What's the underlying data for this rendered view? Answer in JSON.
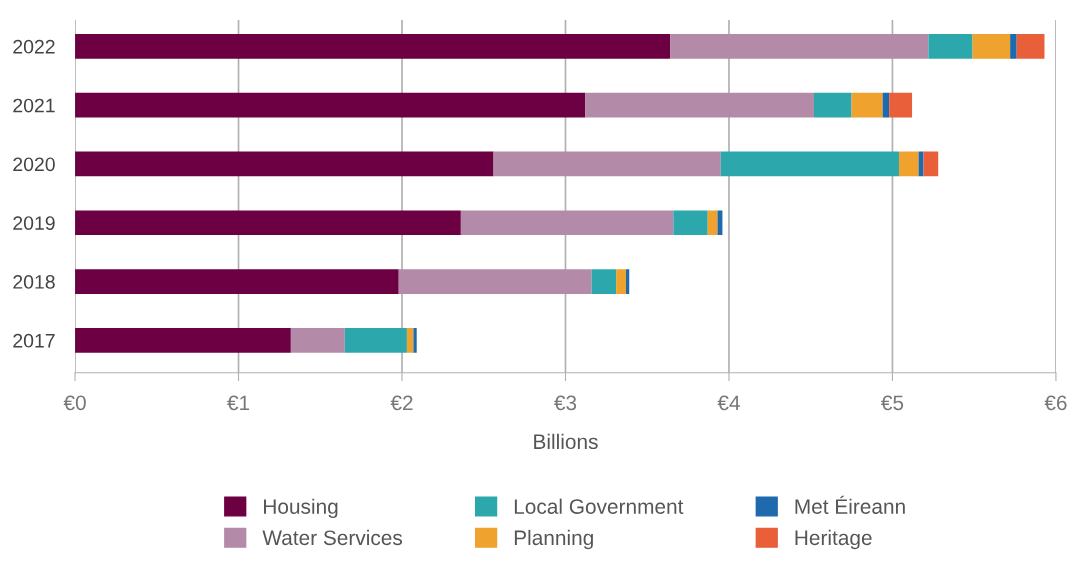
{
  "chart_data": {
    "type": "bar",
    "orientation": "horizontal",
    "stacked": true,
    "xlabel": "Billions",
    "categories": [
      "2022",
      "2021",
      "2020",
      "2019",
      "2018",
      "2017"
    ],
    "series": [
      {
        "name": "Housing",
        "color": "#6d0043",
        "values": [
          3.64,
          3.12,
          2.56,
          2.36,
          1.98,
          1.32
        ]
      },
      {
        "name": "Water Services",
        "color": "#b38ba8",
        "values": [
          1.58,
          1.4,
          1.39,
          1.3,
          1.18,
          0.33
        ]
      },
      {
        "name": "Local Government",
        "color": "#2ca8ad",
        "values": [
          0.27,
          0.23,
          1.09,
          0.21,
          0.15,
          0.38
        ]
      },
      {
        "name": "Planning",
        "color": "#efa22e",
        "values": [
          0.23,
          0.19,
          0.12,
          0.06,
          0.06,
          0.04
        ]
      },
      {
        "name": "Met Éireann",
        "color": "#1f6aad",
        "values": [
          0.04,
          0.04,
          0.03,
          0.03,
          0.02,
          0.02
        ]
      },
      {
        "name": "Heritage",
        "color": "#e95f3a",
        "values": [
          0.17,
          0.14,
          0.09,
          0,
          0,
          0
        ]
      }
    ],
    "xlim": [
      0,
      6
    ],
    "xticks": [
      {
        "value": 0,
        "label": "€0"
      },
      {
        "value": 1,
        "label": "€1"
      },
      {
        "value": 2,
        "label": "€2"
      },
      {
        "value": 3,
        "label": "€3"
      },
      {
        "value": 4,
        "label": "€4"
      },
      {
        "value": 5,
        "label": "€5"
      },
      {
        "value": 6,
        "label": "€6"
      }
    ],
    "grid": "x",
    "legend": "bottom"
  }
}
